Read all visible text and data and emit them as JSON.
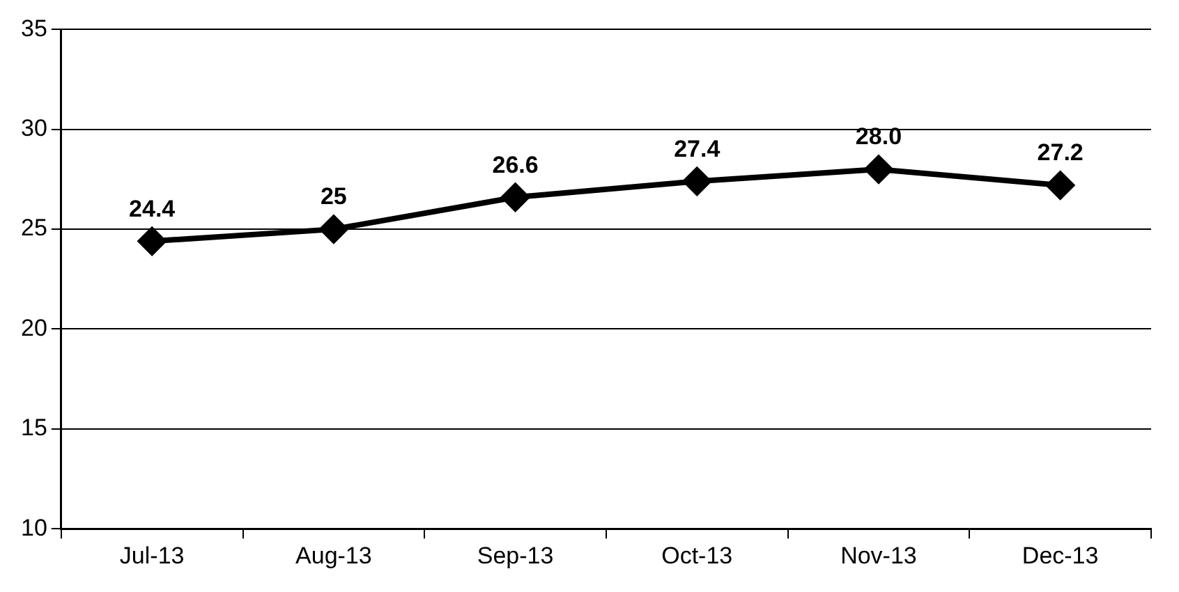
{
  "chart_data": {
    "type": "line",
    "categories": [
      "Jul-13",
      "Aug-13",
      "Sep-13",
      "Oct-13",
      "Nov-13",
      "Dec-13"
    ],
    "series": [
      {
        "color": "#000000",
        "values": [
          24.4,
          25,
          26.6,
          27.4,
          28.0,
          27.2
        ],
        "value_labels": [
          "24.4",
          "25",
          "26.6",
          "27.4",
          "28.0",
          "27.2"
        ]
      }
    ],
    "ylim": [
      10,
      35
    ],
    "yticks": [
      10,
      15,
      20,
      25,
      30,
      35
    ],
    "grid": "y",
    "legend": false,
    "marker": "diamond",
    "line_style": "solid"
  }
}
